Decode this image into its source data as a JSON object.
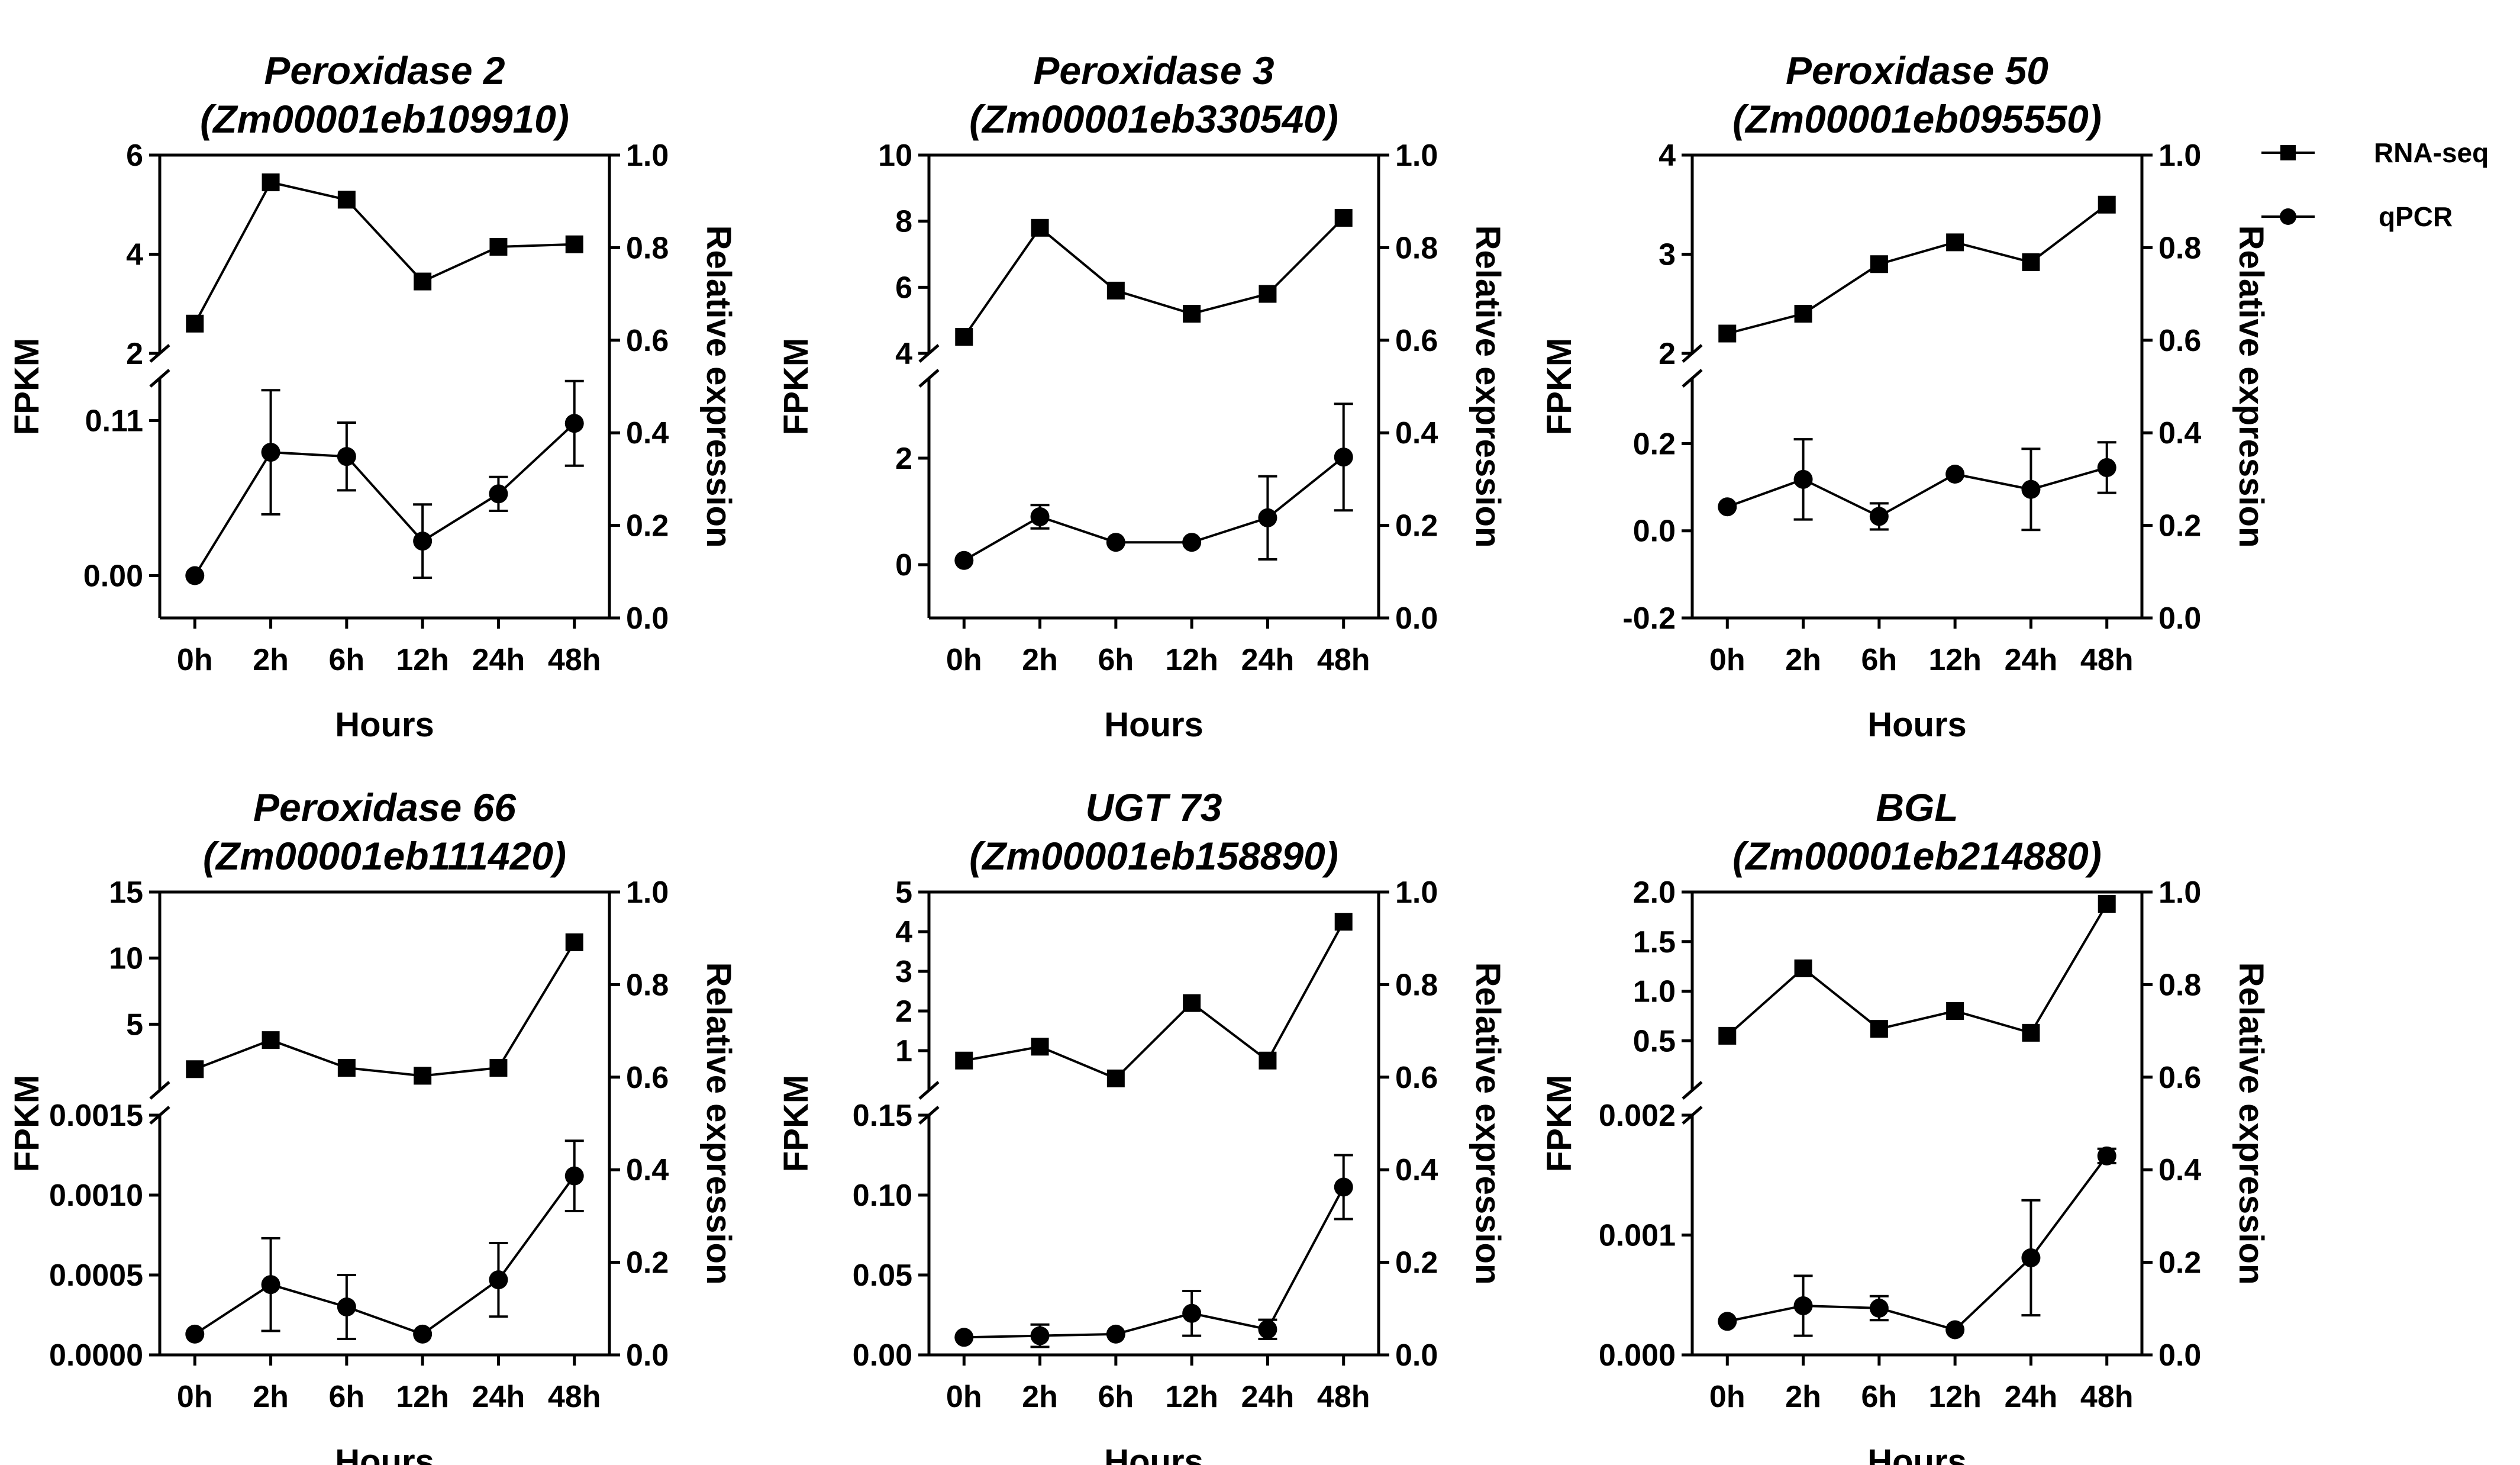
{
  "legend": {
    "rnaseq": "RNA-seq",
    "qpcr": "qPCR"
  },
  "chart_data": [
    {
      "type": "line",
      "title": [
        "Peroxidase 2",
        "(Zm00001eb109910)"
      ],
      "xlabel": "Hours",
      "ylabel_left": "FPKM",
      "ylabel_right": "Relative expression",
      "categories": [
        "0h",
        "2h",
        "6h",
        "12h",
        "24h",
        "48h"
      ],
      "upper_axis": {
        "range": [
          2,
          6
        ],
        "ticks": [
          2,
          4,
          6
        ],
        "tick_labels": [
          "2",
          "4",
          "6"
        ]
      },
      "lower_axis": {
        "range": [
          -0.03,
          0.14
        ],
        "ticks": [
          0.0,
          0.11
        ],
        "tick_labels": [
          "0.00",
          "0.11"
        ]
      },
      "right_axis": {
        "range": [
          0,
          1
        ],
        "ticks": [
          0,
          0.2,
          0.4,
          0.6,
          0.8,
          1.0
        ],
        "tick_labels": [
          "0.0",
          "0.2",
          "0.4",
          "0.6",
          "0.8",
          "1.0"
        ]
      },
      "series": [
        {
          "name": "RNA-seq",
          "axis": "upper",
          "marker": "square",
          "values": [
            2.6,
            5.45,
            5.1,
            3.45,
            4.15,
            4.2
          ]
        },
        {
          "name": "qPCR",
          "axis": "lower",
          "marker": "circle",
          "values": [
            0.0,
            0.0875,
            0.0845,
            0.0245,
            0.058,
            0.108
          ],
          "errors": [
            0.0,
            0.044,
            0.024,
            0.026,
            0.012,
            0.03
          ]
        }
      ]
    },
    {
      "type": "line",
      "title": [
        "Peroxidase 3",
        "(Zm00001eb330540)"
      ],
      "xlabel": "Hours",
      "ylabel_left": "FPKM",
      "ylabel_right": "Relative expression",
      "categories": [
        "0h",
        "2h",
        "6h",
        "12h",
        "24h",
        "48h"
      ],
      "upper_axis": {
        "range": [
          4,
          10
        ],
        "ticks": [
          4,
          6,
          8,
          10
        ],
        "tick_labels": [
          "4",
          "6",
          "8",
          "10"
        ]
      },
      "lower_axis": {
        "range": [
          -1.0,
          3.5
        ],
        "ticks": [
          0,
          2
        ],
        "tick_labels": [
          "0",
          "2"
        ]
      },
      "right_axis": {
        "range": [
          0,
          1
        ],
        "ticks": [
          0,
          0.2,
          0.4,
          0.6,
          0.8,
          1.0
        ],
        "tick_labels": [
          "0.0",
          "0.2",
          "0.4",
          "0.6",
          "0.8",
          "1.0"
        ]
      },
      "series": [
        {
          "name": "RNA-seq",
          "axis": "upper",
          "marker": "square",
          "values": [
            4.5,
            7.8,
            5.9,
            5.2,
            5.8,
            8.1
          ]
        },
        {
          "name": "qPCR",
          "axis": "lower",
          "marker": "circle",
          "values": [
            0.08,
            0.9,
            0.42,
            0.42,
            0.88,
            2.02
          ],
          "errors": [
            0.0,
            0.22,
            0.0,
            0.0,
            0.78,
            1.0
          ]
        }
      ]
    },
    {
      "type": "line",
      "title": [
        "Peroxidase 50",
        "(Zm00001eb095550)"
      ],
      "xlabel": "Hours",
      "ylabel_left": "FPKM",
      "ylabel_right": "Relative expression",
      "categories": [
        "0h",
        "2h",
        "6h",
        "12h",
        "24h",
        "48h"
      ],
      "upper_axis": {
        "range": [
          2,
          4
        ],
        "ticks": [
          2,
          3,
          4
        ],
        "tick_labels": [
          "2",
          "3",
          "4"
        ]
      },
      "lower_axis": {
        "range": [
          -0.2,
          0.35
        ],
        "ticks": [
          -0.2,
          0.0,
          0.2
        ],
        "tick_labels": [
          "-0.2",
          "0.0",
          "0.2"
        ]
      },
      "right_axis": {
        "range": [
          0,
          1
        ],
        "ticks": [
          0,
          0.2,
          0.4,
          0.6,
          0.8,
          1.0
        ],
        "tick_labels": [
          "0.0",
          "0.2",
          "0.4",
          "0.6",
          "0.8",
          "1.0"
        ]
      },
      "series": [
        {
          "name": "RNA-seq",
          "axis": "upper",
          "marker": "square",
          "values": [
            2.2,
            2.4,
            2.9,
            3.12,
            2.92,
            3.5
          ]
        },
        {
          "name": "qPCR",
          "axis": "lower",
          "marker": "circle",
          "values": [
            0.055,
            0.118,
            0.033,
            0.13,
            0.095,
            0.145
          ],
          "errors": [
            0.0,
            0.092,
            0.03,
            0.0,
            0.093,
            0.058
          ]
        }
      ]
    },
    {
      "type": "line",
      "title": [
        "Peroxidase 66",
        "(Zm00001eb111420)"
      ],
      "xlabel": "Hours",
      "ylabel_left": "FPKM",
      "ylabel_right": "Relative expression",
      "categories": [
        "0h",
        "2h",
        "6h",
        "12h",
        "24h",
        "48h"
      ],
      "upper_axis": {
        "range": [
          0,
          15
        ],
        "ticks": [
          5,
          10,
          15
        ],
        "tick_labels": [
          "5",
          "10",
          "15"
        ]
      },
      "lower_axis": {
        "range": [
          0,
          0.0015
        ],
        "ticks": [
          0.0,
          0.0005,
          0.001,
          0.0015
        ],
        "tick_labels": [
          "0.0000",
          "0.0005",
          "0.0010",
          "0.0015"
        ]
      },
      "right_axis": {
        "range": [
          0,
          1
        ],
        "ticks": [
          0,
          0.2,
          0.4,
          0.6,
          0.8,
          1.0
        ],
        "tick_labels": [
          "0.0",
          "0.2",
          "0.4",
          "0.6",
          "0.8",
          "1.0"
        ]
      },
      "series": [
        {
          "name": "RNA-seq",
          "axis": "upper",
          "marker": "square",
          "values": [
            1.6,
            3.8,
            1.7,
            1.1,
            1.7,
            11.2
          ]
        },
        {
          "name": "qPCR",
          "axis": "lower",
          "marker": "circle",
          "values": [
            0.00013,
            0.00044,
            0.0003,
            0.00013,
            0.00047,
            0.00112
          ],
          "errors": [
            0.0,
            0.00029,
            0.0002,
            0.0,
            0.00023,
            0.00022
          ]
        }
      ]
    },
    {
      "type": "line",
      "title": [
        "UGT 73",
        "(Zm00001eb158890)"
      ],
      "xlabel": "Hours",
      "ylabel_left": "FPKM",
      "ylabel_right": "Relative expression",
      "categories": [
        "0h",
        "2h",
        "6h",
        "12h",
        "24h",
        "48h"
      ],
      "upper_axis": {
        "range": [
          0,
          5
        ],
        "ticks": [
          1,
          2,
          3,
          4,
          5
        ],
        "tick_labels": [
          "1",
          "2",
          "3",
          "4",
          "5"
        ]
      },
      "lower_axis": {
        "range": [
          0,
          0.15
        ],
        "ticks": [
          0.0,
          0.05,
          0.1,
          0.15
        ],
        "tick_labels": [
          "0.00",
          "0.05",
          "0.10",
          "0.15"
        ]
      },
      "right_axis": {
        "range": [
          0,
          1
        ],
        "ticks": [
          0,
          0.2,
          0.4,
          0.6,
          0.8,
          1.0
        ],
        "tick_labels": [
          "0.0",
          "0.2",
          "0.4",
          "0.6",
          "0.8",
          "1.0"
        ]
      },
      "series": [
        {
          "name": "RNA-seq",
          "axis": "upper",
          "marker": "square",
          "values": [
            0.75,
            1.1,
            0.3,
            2.2,
            0.75,
            4.25
          ]
        },
        {
          "name": "qPCR",
          "axis": "lower",
          "marker": "circle",
          "values": [
            0.011,
            0.012,
            0.013,
            0.026,
            0.016,
            0.105
          ],
          "errors": [
            0.0,
            0.007,
            0.0,
            0.014,
            0.006,
            0.02
          ]
        }
      ]
    },
    {
      "type": "line",
      "title": [
        "BGL",
        "(Zm00001eb214880)"
      ],
      "xlabel": "Hours",
      "ylabel_left": "FPKM",
      "ylabel_right": "Relative expression",
      "categories": [
        "0h",
        "2h",
        "6h",
        "12h",
        "24h",
        "48h"
      ],
      "upper_axis": {
        "range": [
          0,
          2
        ],
        "ticks": [
          0.5,
          1.0,
          1.5,
          2.0
        ],
        "tick_labels": [
          "0.5",
          "1.0",
          "1.5",
          "2.0"
        ]
      },
      "lower_axis": {
        "range": [
          0,
          0.002
        ],
        "ticks": [
          0.0,
          0.001,
          0.002
        ],
        "tick_labels": [
          "0.000",
          "0.001",
          "0.002"
        ]
      },
      "right_axis": {
        "range": [
          0,
          1
        ],
        "ticks": [
          0,
          0.2,
          0.4,
          0.6,
          0.8,
          1.0
        ],
        "tick_labels": [
          "0.0",
          "0.2",
          "0.4",
          "0.6",
          "0.8",
          "1.0"
        ]
      },
      "series": [
        {
          "name": "RNA-seq",
          "axis": "upper",
          "marker": "square",
          "values": [
            0.55,
            1.23,
            0.62,
            0.8,
            0.58,
            1.88
          ]
        },
        {
          "name": "qPCR",
          "axis": "lower",
          "marker": "circle",
          "values": [
            0.00028,
            0.00041,
            0.00039,
            0.00021,
            0.00081,
            0.00166
          ],
          "errors": [
            0.0,
            0.00025,
            0.0001,
            0.0,
            0.00048,
            6e-05
          ]
        }
      ]
    }
  ]
}
